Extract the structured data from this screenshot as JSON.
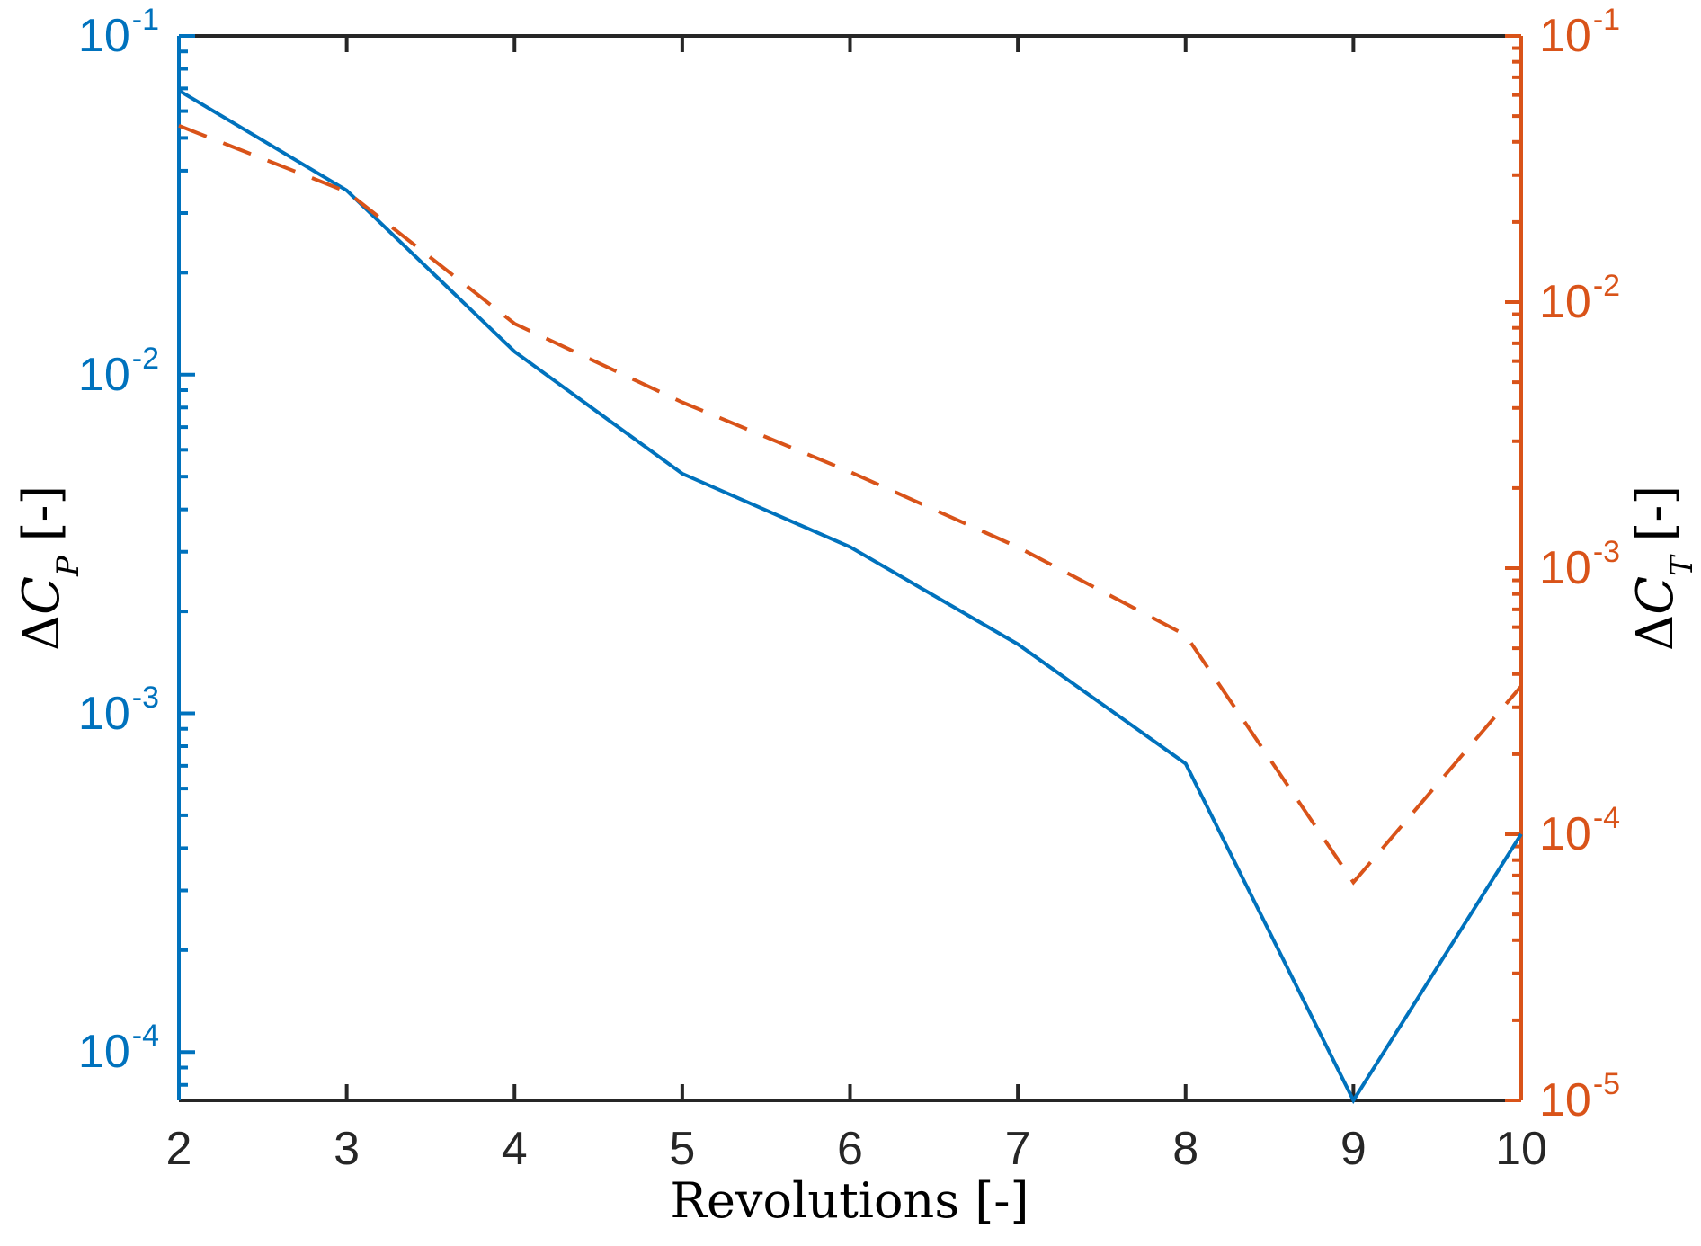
{
  "figure": {
    "background": "#FFFFFF"
  },
  "chart_data": {
    "type": "line",
    "x": [
      2,
      3,
      4,
      5,
      6,
      7,
      8,
      9,
      10
    ],
    "xlabel": "Revolutions [-]",
    "xlim": [
      2,
      10
    ],
    "xticks": [
      "2",
      "3",
      "4",
      "5",
      "6",
      "7",
      "8",
      "9",
      "10"
    ],
    "grid": false,
    "legend_position": "none",
    "series": [
      {
        "name": "ΔC_P",
        "axis": "left",
        "color": "#0072BD",
        "line_style": "solid",
        "line_width": 4,
        "values": [
          0.069,
          0.035,
          0.0117,
          0.0051,
          0.0031,
          0.0016,
          0.00071,
          7.2e-05,
          0.00044
        ]
      },
      {
        "name": "ΔC_T",
        "axis": "right",
        "color": "#D95319",
        "line_style": "dashed",
        "line_width": 4,
        "values": [
          0.046,
          0.026,
          0.0083,
          0.0042,
          0.0023,
          0.0012,
          0.00056,
          6.6e-05,
          0.00036
        ]
      }
    ],
    "left_axis": {
      "label": "ΔC_P [-]",
      "label_parts": {
        "delta": "Δ",
        "symbol": "C",
        "subscript": "P",
        "units": "[-]"
      },
      "scale": "log",
      "ylim": [
        7.2e-05,
        0.1
      ],
      "color": "#0072BD",
      "tick_labels": [
        {
          "base": "10",
          "exp": "-1"
        },
        {
          "base": "10",
          "exp": "-2"
        },
        {
          "base": "10",
          "exp": "-3"
        },
        {
          "base": "10",
          "exp": "-4"
        }
      ]
    },
    "right_axis": {
      "label": "ΔC_T [-]",
      "label_parts": {
        "delta": "Δ",
        "symbol": "C",
        "subscript": "T",
        "units": "[-]"
      },
      "scale": "log",
      "ylim": [
        1e-05,
        0.1
      ],
      "color": "#D95319",
      "tick_labels": [
        {
          "base": "10",
          "exp": "-1"
        },
        {
          "base": "10",
          "exp": "-2"
        },
        {
          "base": "10",
          "exp": "-3"
        },
        {
          "base": "10",
          "exp": "-4"
        },
        {
          "base": "10",
          "exp": "-5"
        }
      ]
    },
    "x_axis": {
      "color": "#262626"
    }
  }
}
